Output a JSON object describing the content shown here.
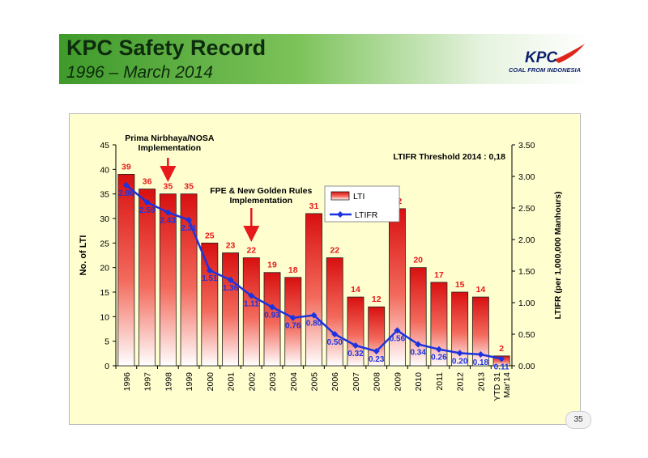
{
  "slide": {
    "title": "KPC Safety Record",
    "subtitle": "1996 – March 2014",
    "logo_text": "KPC",
    "logo_tagline": "COAL FROM INDONESIA",
    "page_number": "35",
    "colors": {
      "banner_green": "#3f9a2b",
      "logo_red": "#e0261b",
      "lti_bar": "#e8191a",
      "ltifr_line": "#1c33e0",
      "plot_bg": "#fefecf"
    }
  },
  "chart_data": {
    "type": "bar",
    "categories": [
      "1996",
      "1997",
      "1998",
      "1999",
      "2000",
      "2001",
      "2002",
      "2003",
      "2004",
      "2005",
      "2006",
      "2007",
      "2008",
      "2009",
      "2010",
      "2011",
      "2012",
      "2013",
      "YTD 31 Mar'14"
    ],
    "series": [
      {
        "name": "LTI",
        "type": "bar",
        "axis": "left",
        "values": [
          39,
          36,
          35,
          35,
          25,
          23,
          22,
          19,
          18,
          31,
          22,
          14,
          12,
          32,
          20,
          17,
          15,
          14,
          2
        ]
      },
      {
        "name": "LTIFR",
        "type": "line",
        "axis": "right",
        "values": [
          2.86,
          2.59,
          2.43,
          2.31,
          1.51,
          1.36,
          1.11,
          0.93,
          0.76,
          0.8,
          0.5,
          0.32,
          0.23,
          0.56,
          0.34,
          0.26,
          0.2,
          0.18,
          0.11
        ]
      }
    ],
    "ylabel": "No. of LTI",
    "y2label": "LTIFR (per 1,000,000 Manhours)",
    "ylim": [
      0,
      45
    ],
    "y2lim": [
      0,
      3.5
    ],
    "yticks": [
      0,
      5,
      10,
      15,
      20,
      25,
      30,
      35,
      40,
      45
    ],
    "y2ticks": [
      "0.00",
      "0.50",
      "1.00",
      "1.50",
      "2.00",
      "2.50",
      "3.00",
      "3.50"
    ],
    "annotations": [
      {
        "text": "Prima Nirbhaya/NOSA\nImplementation",
        "category": "1998"
      },
      {
        "text": "FPE & New Golden Rules\nImplementation",
        "category": "2002"
      },
      {
        "text": "LTIFR Threshold 2014 : 0,18"
      }
    ],
    "legend_position": "top-center",
    "grid": false
  }
}
